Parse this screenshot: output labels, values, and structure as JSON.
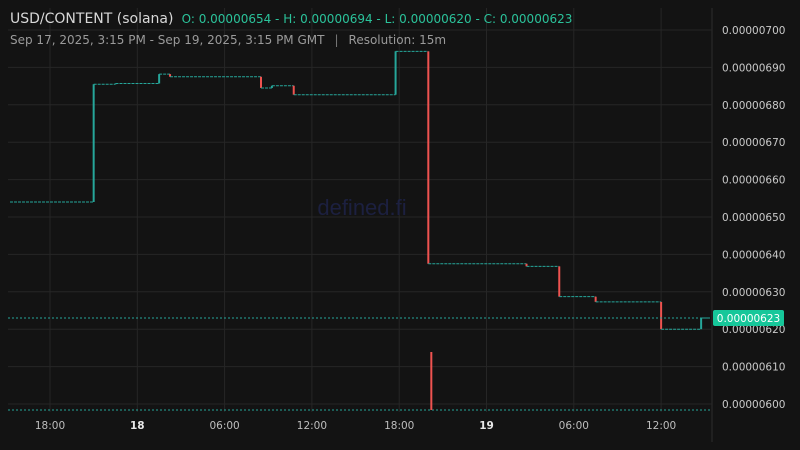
{
  "header": {
    "symbol": "USD/CONTENT (solana)",
    "ohlc": "O: 0.00000654 - H: 0.00000694 - L: 0.00000620 - C: 0.00000623",
    "range": "Sep 17, 2025, 3:15 PM - Sep 19, 2025, 3:15 PM GMT",
    "separator": "|",
    "resolution": "Resolution: 15m"
  },
  "watermark": "defined.fi",
  "colors": {
    "up": "#26a69a",
    "down": "#ef5350",
    "price_label_bg": "#16c79a",
    "background": "#131313"
  },
  "chart_data": {
    "type": "candlestick",
    "x_ticks": [
      {
        "label": "18:00",
        "bold": false
      },
      {
        "label": "18",
        "bold": true
      },
      {
        "label": "06:00",
        "bold": false
      },
      {
        "label": "12:00",
        "bold": false
      },
      {
        "label": "18:00",
        "bold": false
      },
      {
        "label": "19",
        "bold": true
      },
      {
        "label": "06:00",
        "bold": false
      },
      {
        "label": "12:00",
        "bold": false
      }
    ],
    "y_ticks": [
      "0.00000600",
      "0.00000610",
      "0.00000620",
      "0.00000630",
      "0.00000640",
      "0.00000650",
      "0.00000660",
      "0.00000670",
      "0.00000680",
      "0.00000690",
      "0.00000700"
    ],
    "ylim": [
      5.97e-06,
      7.04e-06
    ],
    "last_price": "0.00000623",
    "last_price_value": 6.23e-06,
    "grid": true,
    "steps": [
      {
        "from": "2025-09-17 15:15",
        "to": "2025-09-17 21:00",
        "start": 6.54e-06,
        "end": 6.54e-06
      },
      {
        "from": "2025-09-17 21:00",
        "to": "2025-09-17 22:30",
        "start": 6.54e-06,
        "end": 6.855e-06
      },
      {
        "from": "2025-09-17 22:30",
        "to": "2025-09-18 01:30",
        "start": 6.855e-06,
        "end": 6.857e-06
      },
      {
        "from": "2025-09-18 01:30",
        "to": "2025-09-18 02:15",
        "start": 6.857e-06,
        "end": 6.882e-06
      },
      {
        "from": "2025-09-18 02:15",
        "to": "2025-09-18 08:30",
        "start": 6.882e-06,
        "end": 6.875e-06
      },
      {
        "from": "2025-09-18 08:30",
        "to": "2025-09-18 09:15",
        "start": 6.875e-06,
        "end": 6.845e-06
      },
      {
        "from": "2025-09-18 09:15",
        "to": "2025-09-18 10:45",
        "start": 6.845e-06,
        "end": 6.851e-06
      },
      {
        "from": "2025-09-18 10:45",
        "to": "2025-09-18 17:45",
        "start": 6.851e-06,
        "end": 6.827e-06
      },
      {
        "from": "2025-09-18 17:45",
        "to": "2025-09-18 20:00",
        "start": 6.827e-06,
        "end": 6.943e-06
      },
      {
        "from": "2025-09-18 20:00",
        "to": "2025-09-19 02:45",
        "start": 6.943e-06,
        "end": 6.375e-06
      },
      {
        "from": "2025-09-19 02:45",
        "to": "2025-09-19 05:00",
        "start": 6.375e-06,
        "end": 6.368e-06
      },
      {
        "from": "2025-09-19 05:00",
        "to": "2025-09-19 07:30",
        "start": 6.368e-06,
        "end": 6.287e-06
      },
      {
        "from": "2025-09-19 07:30",
        "to": "2025-09-19 12:00",
        "start": 6.287e-06,
        "end": 6.273e-06
      },
      {
        "from": "2025-09-19 12:00",
        "to": "2025-09-19 14:45",
        "start": 6.273e-06,
        "end": 6.2e-06
      },
      {
        "from": "2025-09-19 14:45",
        "to": "2025-09-19 15:15",
        "start": 6.2e-06,
        "end": 6.23e-06
      }
    ],
    "volume_spike": {
      "time": "2025-09-18 20:00",
      "relative": 1.0
    }
  }
}
